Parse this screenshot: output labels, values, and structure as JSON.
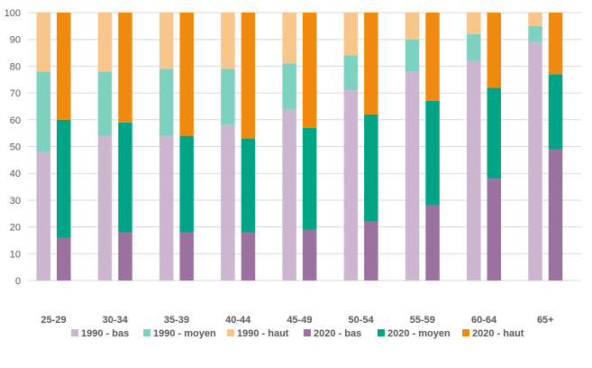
{
  "chart_data": {
    "type": "bar",
    "stacked": true,
    "title": "",
    "xlabel": "",
    "ylabel": "",
    "ylim": [
      0,
      100
    ],
    "yticks": [
      0,
      10,
      20,
      30,
      40,
      50,
      60,
      70,
      80,
      90,
      100
    ],
    "grid": true,
    "legend_position": "bottom",
    "categories": [
      "25-29",
      "30-34",
      "35-39",
      "40-44",
      "45-49",
      "50-54",
      "55-59",
      "60-64",
      "65+"
    ],
    "groups": [
      {
        "name": "1990",
        "series": [
          {
            "name": "1990 - bas",
            "color": "#ccb5cf",
            "values": [
              48,
              54,
              54,
              58,
              64,
              71,
              78,
              82,
              89
            ]
          },
          {
            "name": "1990 - moyen",
            "color": "#7fd1bf",
            "values": [
              30,
              24,
              25,
              21,
              17,
              13,
              12,
              10,
              6
            ]
          },
          {
            "name": "1990 - haut",
            "color": "#f8c58a",
            "values": [
              22,
              22,
              21,
              21,
              19,
              16,
              10,
              8,
              5
            ]
          }
        ]
      },
      {
        "name": "2020",
        "series": [
          {
            "name": "2020 - bas",
            "color": "#9b71a0",
            "values": [
              16,
              18,
              18,
              18,
              19,
              22,
              28,
              38,
              49
            ]
          },
          {
            "name": "2020 - moyen",
            "color": "#00a383",
            "values": [
              44,
              41,
              36,
              35,
              38,
              40,
              39,
              34,
              28
            ]
          },
          {
            "name": "2020 - haut",
            "color": "#f08a0f",
            "values": [
              40,
              41,
              46,
              47,
              43,
              38,
              33,
              28,
              23
            ]
          }
        ]
      }
    ]
  }
}
